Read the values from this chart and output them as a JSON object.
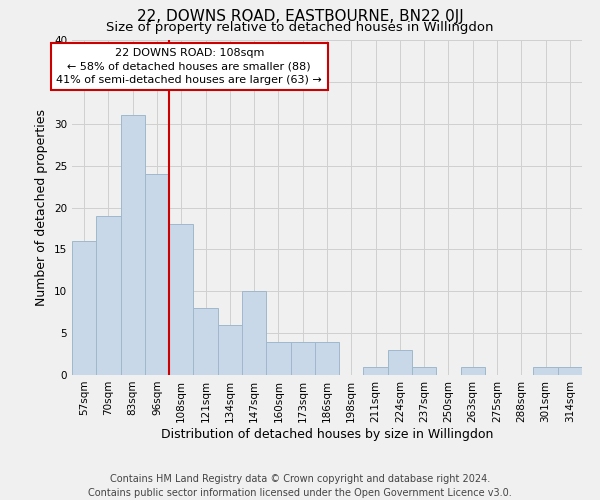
{
  "title": "22, DOWNS ROAD, EASTBOURNE, BN22 0JJ",
  "subtitle": "Size of property relative to detached houses in Willingdon",
  "xlabel": "Distribution of detached houses by size in Willingdon",
  "ylabel": "Number of detached properties",
  "bar_labels": [
    "57sqm",
    "70sqm",
    "83sqm",
    "96sqm",
    "108sqm",
    "121sqm",
    "134sqm",
    "147sqm",
    "160sqm",
    "173sqm",
    "186sqm",
    "198sqm",
    "211sqm",
    "224sqm",
    "237sqm",
    "250sqm",
    "263sqm",
    "275sqm",
    "288sqm",
    "301sqm",
    "314sqm"
  ],
  "bar_values": [
    16,
    19,
    31,
    24,
    18,
    8,
    6,
    10,
    4,
    4,
    4,
    0,
    1,
    3,
    1,
    0,
    1,
    0,
    0,
    1,
    1
  ],
  "bar_color": "#c8d8e8",
  "bar_edge_color": "#a0b8cc",
  "vline_color": "#cc0000",
  "annotation_text": "22 DOWNS ROAD: 108sqm\n← 58% of detached houses are smaller (88)\n41% of semi-detached houses are larger (63) →",
  "annotation_box_color": "#ffffff",
  "annotation_box_edge": "#cc0000",
  "ylim": [
    0,
    40
  ],
  "yticks": [
    0,
    5,
    10,
    15,
    20,
    25,
    30,
    35,
    40
  ],
  "footer1": "Contains HM Land Registry data © Crown copyright and database right 2024.",
  "footer2": "Contains public sector information licensed under the Open Government Licence v3.0.",
  "background_color": "#f0f0f0",
  "plot_bg_color": "#f0f0f0",
  "grid_color": "#d0d0d0",
  "title_fontsize": 11,
  "subtitle_fontsize": 9.5,
  "axis_label_fontsize": 9,
  "tick_fontsize": 7.5,
  "annotation_fontsize": 8,
  "footer_fontsize": 7
}
